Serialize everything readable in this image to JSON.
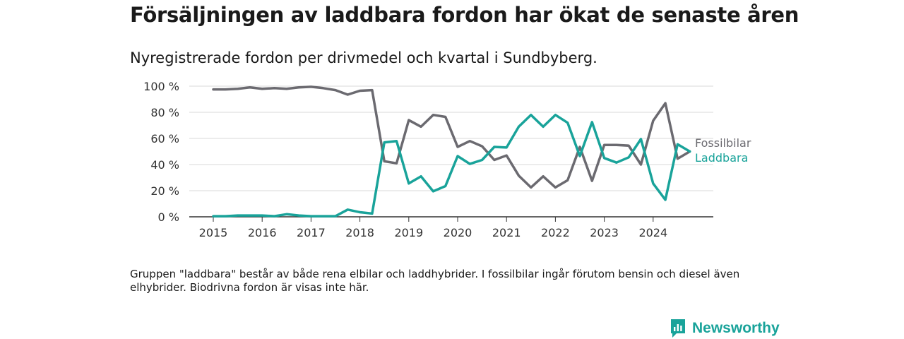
{
  "header": {
    "title": "Försäljningen av laddbara fordon har ökat de senaste åren",
    "subtitle": "Nyregistrerade fordon per drivmedel och kvartal i Sundbyberg."
  },
  "chart_data": {
    "type": "line",
    "title": "Försäljningen av laddbara fordon har ökat de senaste åren",
    "subtitle": "Nyregistrerade fordon per drivmedel och kvartal i Sundbyberg.",
    "xlabel": "",
    "ylabel": "",
    "ylim": [
      0,
      100
    ],
    "y_ticks": [
      0,
      20,
      40,
      60,
      80,
      100
    ],
    "y_tick_labels": [
      "0 %",
      "20 %",
      "40 %",
      "60 %",
      "80 %",
      "100 %"
    ],
    "x_tick_labels": [
      "2015",
      "2016",
      "2017",
      "2018",
      "2019",
      "2020",
      "2021",
      "2022",
      "2023",
      "2024"
    ],
    "grid": true,
    "legend": "right-end-labels",
    "categories": [
      "2015 Q1",
      "2015 Q2",
      "2015 Q3",
      "2015 Q4",
      "2016 Q1",
      "2016 Q2",
      "2016 Q3",
      "2016 Q4",
      "2017 Q1",
      "2017 Q2",
      "2017 Q3",
      "2017 Q4",
      "2018 Q1",
      "2018 Q2",
      "2018 Q3",
      "2018 Q4",
      "2019 Q1",
      "2019 Q2",
      "2019 Q3",
      "2019 Q4",
      "2020 Q1",
      "2020 Q2",
      "2020 Q3",
      "2020 Q4",
      "2021 Q1",
      "2021 Q2",
      "2021 Q3",
      "2021 Q4",
      "2022 Q1",
      "2022 Q2",
      "2022 Q3",
      "2022 Q4",
      "2023 Q1",
      "2023 Q2",
      "2023 Q3",
      "2023 Q4",
      "2024 Q1",
      "2024 Q2",
      "2024 Q3",
      "2024 Q4"
    ],
    "series": [
      {
        "name": "Fossilbilar",
        "color": "#6b6a70",
        "values": [
          97.5,
          97.5,
          98,
          99,
          98,
          98.5,
          98,
          99,
          99.5,
          98.5,
          97,
          93.5,
          96.5,
          97,
          42.5,
          41,
          74,
          69,
          78,
          76.5,
          53.5,
          58,
          54,
          43.5,
          47,
          31.5,
          22.5,
          31,
          22.5,
          28,
          53.5,
          27.5,
          55,
          55,
          54.5,
          40,
          73.5,
          87,
          44.5,
          50
        ]
      },
      {
        "name": "Laddbara",
        "color": "#19a39a",
        "values": [
          0.5,
          0.5,
          1,
          1,
          1,
          0.5,
          2,
          1,
          0.5,
          0.5,
          0.5,
          5.5,
          3.5,
          2.5,
          57,
          58,
          25.5,
          31,
          19.5,
          23.5,
          46.5,
          40.5,
          43.5,
          53.5,
          53,
          69,
          78,
          69,
          78,
          72,
          46.5,
          72.5,
          45,
          41.5,
          45.5,
          59.5,
          25.5,
          13,
          55.5,
          50
        ]
      }
    ]
  },
  "footer": {
    "note": "Gruppen \"laddbara\" består av både rena elbilar och laddhybrider. I fossilbilar ingår förutom bensin och diesel även elhybrider. Biodrivna fordon är visas inte här.",
    "brand": "Newsworthy"
  },
  "colors": {
    "fossil": "#6b6a70",
    "laddbara": "#19a39a",
    "grid": "#d9d9d9",
    "axis": "#333333",
    "brand": "#19a39a"
  }
}
